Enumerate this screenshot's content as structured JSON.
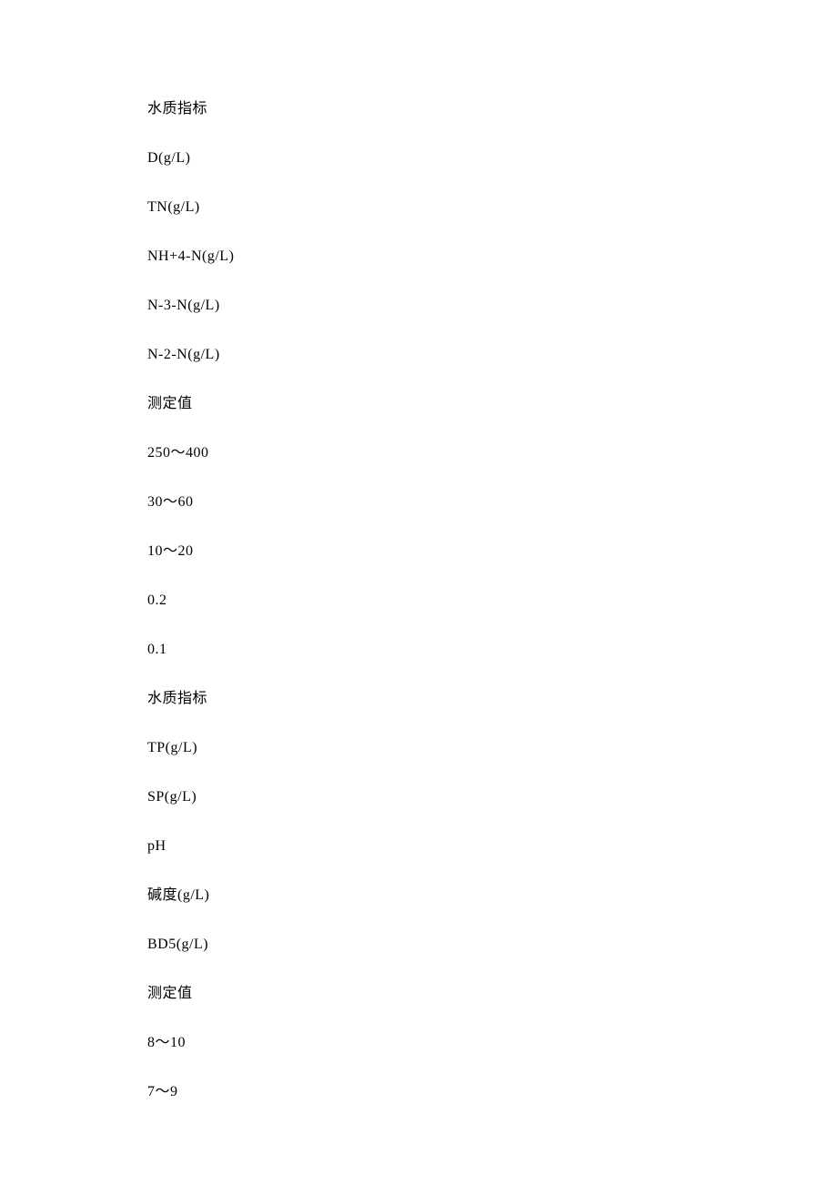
{
  "lines": [
    "水质指标",
    "D(g/L)",
    "TN(g/L)",
    "NH+4-N(g/L)",
    "N-3-N(g/L)",
    "N-2-N(g/L)",
    "测定值",
    "250～400",
    "30～60",
    "10～20",
    "0.2",
    "0.1",
    "水质指标",
    "TP(g/L)",
    "SP(g/L)",
    "pH",
    "碱度(g/L)",
    "BD5(g/L)",
    "测定值",
    "8～10",
    "7～9"
  ]
}
